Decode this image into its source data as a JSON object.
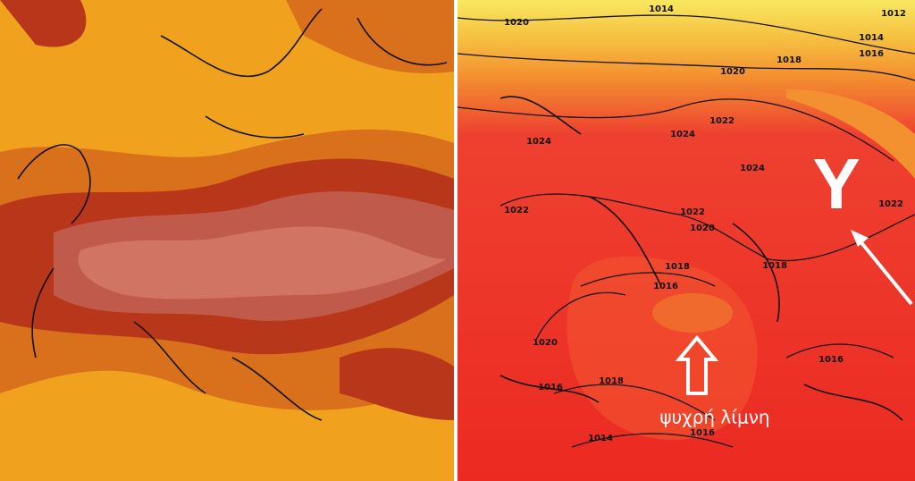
{
  "isobars": [
    "1020",
    "1014",
    "1012",
    "1014",
    "1016",
    "1018",
    "1020",
    "1022",
    "1024",
    "1024",
    "1024",
    "1022",
    "1022",
    "1020",
    "1018",
    "1018",
    "1016",
    "1022",
    "1020",
    "1018",
    "1016",
    "1016",
    "1014",
    "1016"
  ],
  "annotations": {
    "symbol": "Y",
    "label": "ψυχρή λίμνη"
  }
}
